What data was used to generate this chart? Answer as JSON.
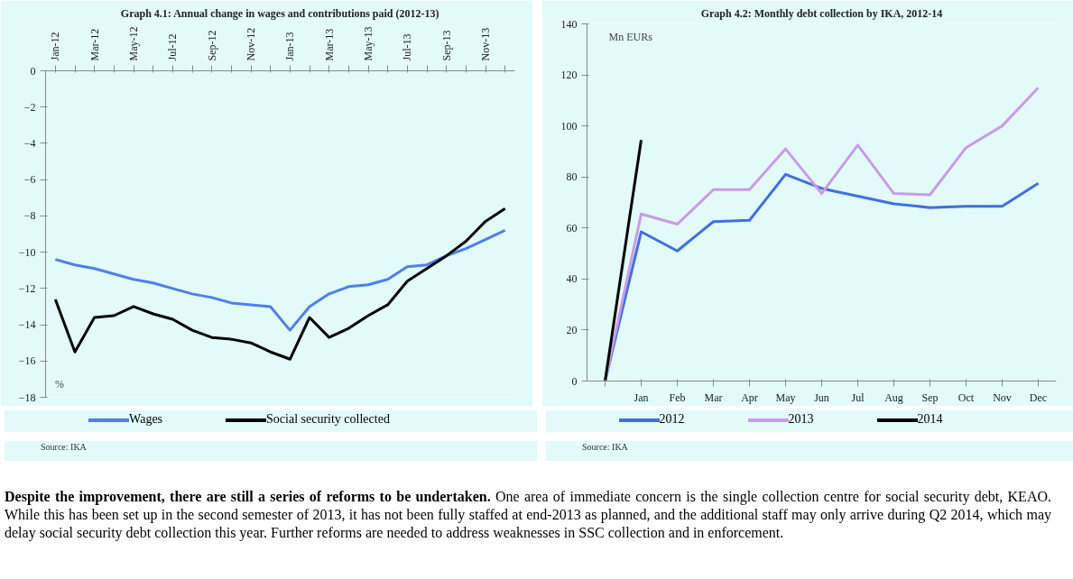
{
  "chart_data": [
    {
      "type": "line",
      "title": "Graph 4.1: Annual change in wages and contributions paid (2012-13)",
      "ylabel": "%",
      "categories": [
        "Jan-12",
        null,
        "Mar-12",
        null,
        "May-12",
        null,
        "Jul-12",
        null,
        "Sep-12",
        null,
        "Nov-12",
        null,
        "Jan-13",
        null,
        "Mar-13",
        null,
        "May-13",
        null,
        "Jul-13",
        null,
        "Sep-13",
        null,
        "Nov-13",
        null
      ],
      "series": [
        {
          "name": "Wages",
          "color": "#4f7fe8",
          "values": [
            -10.4,
            -10.7,
            -10.9,
            -11.2,
            -11.5,
            -11.7,
            -12.0,
            -12.3,
            -12.5,
            -12.8,
            -12.9,
            -13.0,
            -14.3,
            -13.0,
            -12.3,
            -11.9,
            -11.8,
            -11.5,
            -10.8,
            -10.7,
            -10.2,
            -9.8,
            -9.3,
            -8.8
          ]
        },
        {
          "name": "Social security collected",
          "color": "#000000",
          "values": [
            -12.6,
            -15.5,
            -13.6,
            -13.5,
            -13.0,
            -13.4,
            -13.7,
            -14.3,
            -14.7,
            -14.8,
            -15.0,
            -15.5,
            -15.9,
            -13.6,
            -14.7,
            -14.2,
            -13.5,
            -12.9,
            -11.6,
            -10.9,
            -10.2,
            -9.4,
            -8.3,
            -7.6
          ]
        }
      ],
      "ylim": [
        -18,
        0
      ],
      "yticks": [
        -18,
        -16,
        -14,
        -12,
        -10,
        -8,
        -6,
        -4,
        -2,
        0
      ],
      "grid": false,
      "legend": "bottom",
      "line_style": "solid",
      "marker": "none",
      "annotations": [
        "Source: IKA"
      ]
    },
    {
      "type": "line",
      "title": "Graph 4.2: Monthly debt collection by IKA, 2012-14",
      "ylabel": "Mn EURs",
      "categories": [
        null,
        "Jan",
        "Feb",
        "Mar",
        "Apr",
        "May",
        "Jun",
        "Jul",
        "Aug",
        "Sep",
        "Oct",
        "Nov",
        "Dec"
      ],
      "series": [
        {
          "name": "2012",
          "color": "#3f6fe0",
          "values": [
            0,
            58.5,
            51,
            62.5,
            63,
            81,
            75.5,
            72.5,
            69.5,
            68,
            68.5,
            68.5,
            77.5
          ]
        },
        {
          "name": "2013",
          "color": "#c99be8",
          "values": [
            0,
            65.5,
            61.5,
            75,
            75,
            91,
            73.5,
            92.5,
            73.5,
            73,
            91.5,
            100,
            115
          ]
        },
        {
          "name": "2014",
          "color": "#000000",
          "values": [
            0,
            94.5,
            null,
            null,
            null,
            null,
            null,
            null,
            null,
            null,
            null,
            null,
            null
          ]
        }
      ],
      "ylim": [
        0,
        140
      ],
      "yticks": [
        0,
        20,
        40,
        60,
        80,
        100,
        120,
        140
      ],
      "grid": false,
      "legend": "bottom",
      "line_style": "solid",
      "marker": "none",
      "annotations": [
        "Source: IKA"
      ]
    },
    {
      "type": "other",
      "title": "Despite the improvement, there are still a series of reforms to be undertaken.",
      "annotations": [
        "One area of immediate concern is the single collection centre for social security debt, KEAO. While this has been set up in the second semester of 2013, it has not been fully staffed at end-2013 as planned, and the additional staff may only arrive during Q2 2014, which may delay social security debt collection this year. Further reforms are needed to address weaknesses in SSC collection and in enforcement."
      ]
    }
  ]
}
